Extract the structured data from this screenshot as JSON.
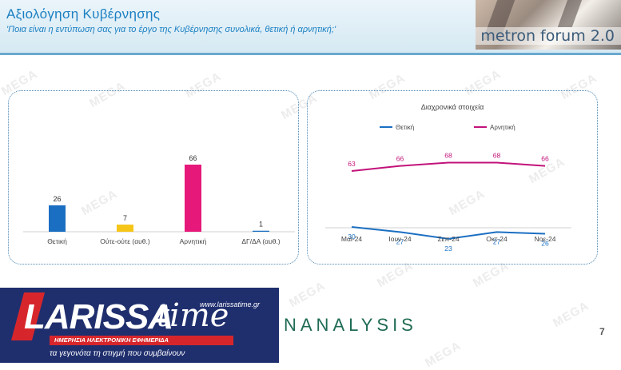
{
  "header": {
    "title": "Αξιολόγηση Κυβέρνησης",
    "subtitle": "'Ποια είναι η εντύπωση σας για το έργο της Κυβέρνησης συνολικά, θετική ή αρνητική;'",
    "brand": "metron forum 2.0"
  },
  "watermark": "MEGA",
  "chart_data": [
    {
      "type": "bar",
      "categories": [
        "Θετική",
        "Ούτε-ούτε (αυθ.)",
        "Αρνητική",
        "ΔΓ/ΔΑ (αυθ.)"
      ],
      "values": [
        26,
        7,
        66,
        1
      ],
      "colors": [
        "#1b6fc2",
        "#f5c518",
        "#e6197a",
        "#1b6fc2"
      ],
      "title": "",
      "ylim": [
        0,
        66
      ]
    },
    {
      "type": "line",
      "title": "Διαχρονικά στοιχεία",
      "categories": [
        "Μαϊ-24",
        "Ιουν-24",
        "Σεπ-24",
        "Οκτ-24",
        "Νοε-24"
      ],
      "series": [
        {
          "name": "Θετική",
          "values": [
            30,
            27,
            23,
            27,
            26
          ],
          "color": "#1b6fc2"
        },
        {
          "name": "Αρνητική",
          "values": [
            63,
            66,
            68,
            68,
            66
          ],
          "color": "#c2127a"
        }
      ],
      "legend": "top"
    }
  ],
  "footer": {
    "logo_main": "LARISSA",
    "logo_time": "time",
    "logo_url": "www.larissatime.gr",
    "logo_bar": "ΗΜΕΡΗΣΙΑ ΗΛΕΚΤΡΟΝΙΚΗ ΕΦΗΜΕΡΙΔΑ",
    "logo_tagline": "τα γεγονότα τη στιγμή που συμβαίνουν",
    "analysis": "NANALYSIS",
    "page_number": "7"
  }
}
